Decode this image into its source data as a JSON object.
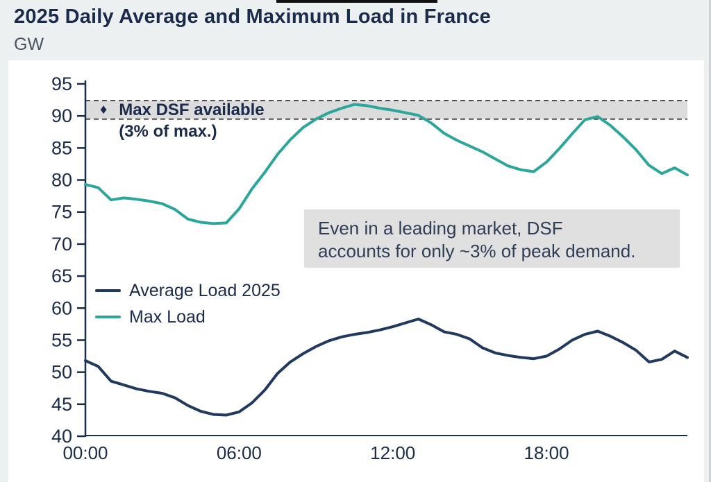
{
  "header": {
    "title": "2025 Daily Average and Maximum Load in France",
    "unit": "GW"
  },
  "chart_data": {
    "type": "line",
    "title": "2025 Daily Average and Maximum Load in France",
    "ylabel": "GW",
    "ylim": [
      40,
      95
    ],
    "ytick_step": 5,
    "yticks": [
      40,
      45,
      50,
      55,
      60,
      65,
      70,
      75,
      80,
      85,
      90,
      95
    ],
    "xticks": [
      "00:00",
      "06:00",
      "12:00",
      "18:00"
    ],
    "xtick_hours": [
      0,
      6,
      12,
      18
    ],
    "grid": "off",
    "legend_position": "inside-left",
    "x": [
      "00:00",
      "00:30",
      "01:00",
      "01:30",
      "02:00",
      "02:30",
      "03:00",
      "03:30",
      "04:00",
      "04:30",
      "05:00",
      "05:30",
      "06:00",
      "06:30",
      "07:00",
      "07:30",
      "08:00",
      "08:30",
      "09:00",
      "09:30",
      "10:00",
      "10:30",
      "11:00",
      "11:30",
      "12:00",
      "12:30",
      "13:00",
      "13:30",
      "14:00",
      "14:30",
      "15:00",
      "15:30",
      "16:00",
      "16:30",
      "17:00",
      "17:30",
      "18:00",
      "18:30",
      "19:00",
      "19:30",
      "20:00",
      "20:30",
      "21:00",
      "21:30",
      "22:00",
      "22:30",
      "23:00",
      "23:30"
    ],
    "series": [
      {
        "name": "Average Load 2025",
        "color": "#21395f",
        "values": [
          51.8,
          50.9,
          48.6,
          48.0,
          47.4,
          47.0,
          46.7,
          46.0,
          44.8,
          43.9,
          43.4,
          43.3,
          43.8,
          45.2,
          47.2,
          49.8,
          51.6,
          52.9,
          54.0,
          54.9,
          55.5,
          55.9,
          56.2,
          56.6,
          57.1,
          57.7,
          58.3,
          57.4,
          56.3,
          55.9,
          55.2,
          53.8,
          53.0,
          52.6,
          52.3,
          52.1,
          52.5,
          53.6,
          55.0,
          55.9,
          56.4,
          55.6,
          54.6,
          53.4,
          51.6,
          52.0,
          53.3,
          52.3
        ]
      },
      {
        "name": "Max Load",
        "color": "#2ba69a",
        "values": [
          79.3,
          78.8,
          76.9,
          77.2,
          77.0,
          76.7,
          76.3,
          75.4,
          73.9,
          73.4,
          73.2,
          73.3,
          75.5,
          78.6,
          81.2,
          84.0,
          86.3,
          88.2,
          89.5,
          90.5,
          91.2,
          91.8,
          91.6,
          91.2,
          90.9,
          90.5,
          90.1,
          88.9,
          87.3,
          86.2,
          85.3,
          84.4,
          83.3,
          82.2,
          81.6,
          81.3,
          82.8,
          84.9,
          87.2,
          89.4,
          89.9,
          88.5,
          86.7,
          84.7,
          82.3,
          81.0,
          81.9,
          80.8
        ]
      }
    ],
    "band": {
      "marker": "♦",
      "label_line1": "Max DSF available",
      "label_line2": "(3% of max.)",
      "y_from": 89.5,
      "y_to": 92.4,
      "fill": "#dcdcdc",
      "border_color": "#4d4d4d"
    },
    "annotation": {
      "line1": "Even in a leading market, DSF",
      "line2": "accounts for only ~3% of peak demand."
    }
  },
  "legend": [
    {
      "label": "Average Load 2025",
      "color": "#21395f"
    },
    {
      "label": "Max Load",
      "color": "#2ba69a"
    }
  ],
  "colors": {
    "axis": "#1b2b4b",
    "title": "#1b2b4b",
    "unit_label": "#4a5462",
    "annotation_bg": "#e0e0e0",
    "annotation_text": "#2f3d55",
    "page_bg": "#edf0f1",
    "panel_bg": "#ffffff"
  }
}
